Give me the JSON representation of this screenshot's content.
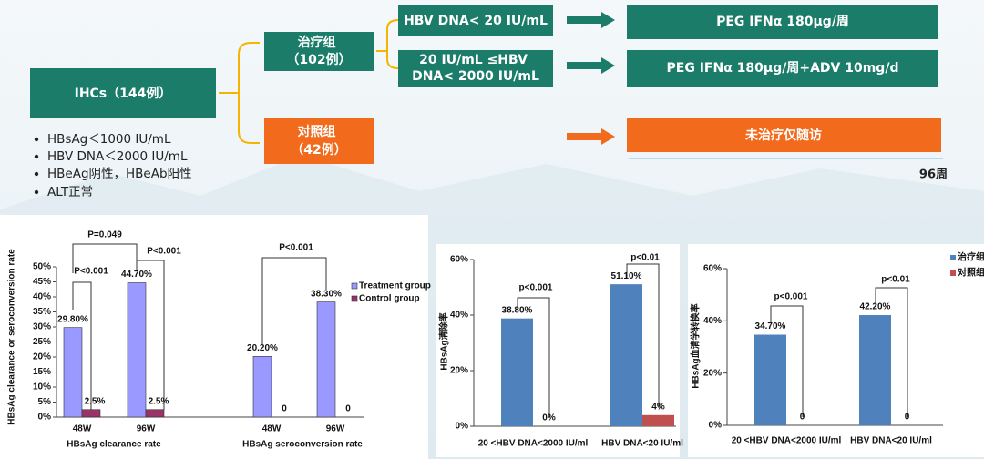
{
  "diagram": {
    "root": "IHCs（144例）",
    "criteria": [
      "HBsAg＜1000 IU/mL",
      "HBV DNA＜2000 IU/mL",
      "HBeAg阴性，HBeAb阳性",
      "ALT正常"
    ],
    "treatment_group": [
      "治疗组",
      "（102例）"
    ],
    "control_group": [
      "对照组",
      "（42例）"
    ],
    "subgroups": [
      [
        "HBV DNA< 20 IU/mL"
      ],
      [
        "20 IU/mL ≤HBV",
        "DNA< 2000 IU/mL"
      ]
    ],
    "regimens": [
      "PEG IFNα 180μg/周",
      "PEG IFNα 180μg/周+ADV 10mg/d"
    ],
    "control_regimen": "未治疗仅随访",
    "timeline_end": "96周"
  },
  "chart_data": [
    {
      "type": "bar",
      "y_label": "HBsAg clearance or seroconversion rate",
      "categories": [
        "48W",
        "96W",
        "48W",
        "96W"
      ],
      "group_labels": [
        "HBsAg clearance rate",
        "HBsAg seroconversion rate"
      ],
      "series": [
        {
          "name": "Treatment group",
          "color": "#9999ff",
          "values": [
            29.8,
            44.7,
            20.2,
            38.3
          ],
          "value_labels": [
            "29.80%",
            "44.70%",
            "20.20%",
            "38.30%"
          ]
        },
        {
          "name": "Control group",
          "color": "#993366",
          "values": [
            2.5,
            2.5,
            0,
            0
          ],
          "value_labels": [
            "2.5%",
            "2.5%",
            "0",
            "0"
          ]
        }
      ],
      "ylim": [
        0,
        50
      ],
      "yticks": [
        {
          "value": 0,
          "label": "0%"
        },
        {
          "value": 5,
          "label": "5%"
        },
        {
          "value": 10,
          "label": "10%"
        },
        {
          "value": 15,
          "label": "15%"
        },
        {
          "value": 20,
          "label": "20%"
        },
        {
          "value": 25,
          "label": "25%"
        },
        {
          "value": 30,
          "label": "30%"
        },
        {
          "value": 35,
          "label": "35%"
        },
        {
          "value": 40,
          "label": "40%"
        },
        {
          "value": 45,
          "label": "45%"
        },
        {
          "value": 50,
          "label": "50%"
        }
      ],
      "annotations": [
        "P<0.001",
        "P=0.049",
        "P<0.001",
        "P<0.001"
      ],
      "legend": "right"
    },
    {
      "type": "bar",
      "y_label": "HBsAg清除率",
      "categories": [
        "20 <HBV DNA<2000 IU/ml",
        "HBV DNA<20 IU/ml"
      ],
      "series": [
        {
          "color": "#4f81bd",
          "values": [
            38.8,
            51.1
          ],
          "value_labels": [
            "38.80%",
            "51.10%"
          ]
        },
        {
          "color": "#c0504d",
          "values": [
            0,
            4
          ],
          "value_labels": [
            "0%",
            "4%"
          ]
        }
      ],
      "ylim": [
        0,
        60
      ],
      "yticks": [
        {
          "value": 0,
          "label": "0%"
        },
        {
          "value": 20,
          "label": "20%"
        },
        {
          "value": 40,
          "label": "40%"
        },
        {
          "value": 60,
          "label": "60%"
        }
      ],
      "annotations": [
        "p<0.001",
        "p<0.01"
      ]
    },
    {
      "type": "bar",
      "y_label": "HBsAg血清学转换率",
      "categories": [
        "20 <HBV DNA<2000 IU/ml",
        "HBV DNA<20 IU/ml"
      ],
      "series": [
        {
          "name": "治疗组",
          "color": "#4f81bd",
          "values": [
            34.7,
            42.2
          ],
          "value_labels": [
            "34.70%",
            "42.20%"
          ]
        },
        {
          "name": "对照组",
          "color": "#c0504d",
          "values": [
            0,
            0
          ],
          "value_labels": [
            "0",
            "0"
          ]
        }
      ],
      "ylim": [
        0,
        60
      ],
      "yticks": [
        {
          "value": 0,
          "label": "0%"
        },
        {
          "value": 20,
          "label": "20%"
        },
        {
          "value": 40,
          "label": "40%"
        },
        {
          "value": 60,
          "label": "60%"
        }
      ],
      "annotations": [
        "p<0.001",
        "p<0.01"
      ],
      "legend": "right"
    }
  ]
}
